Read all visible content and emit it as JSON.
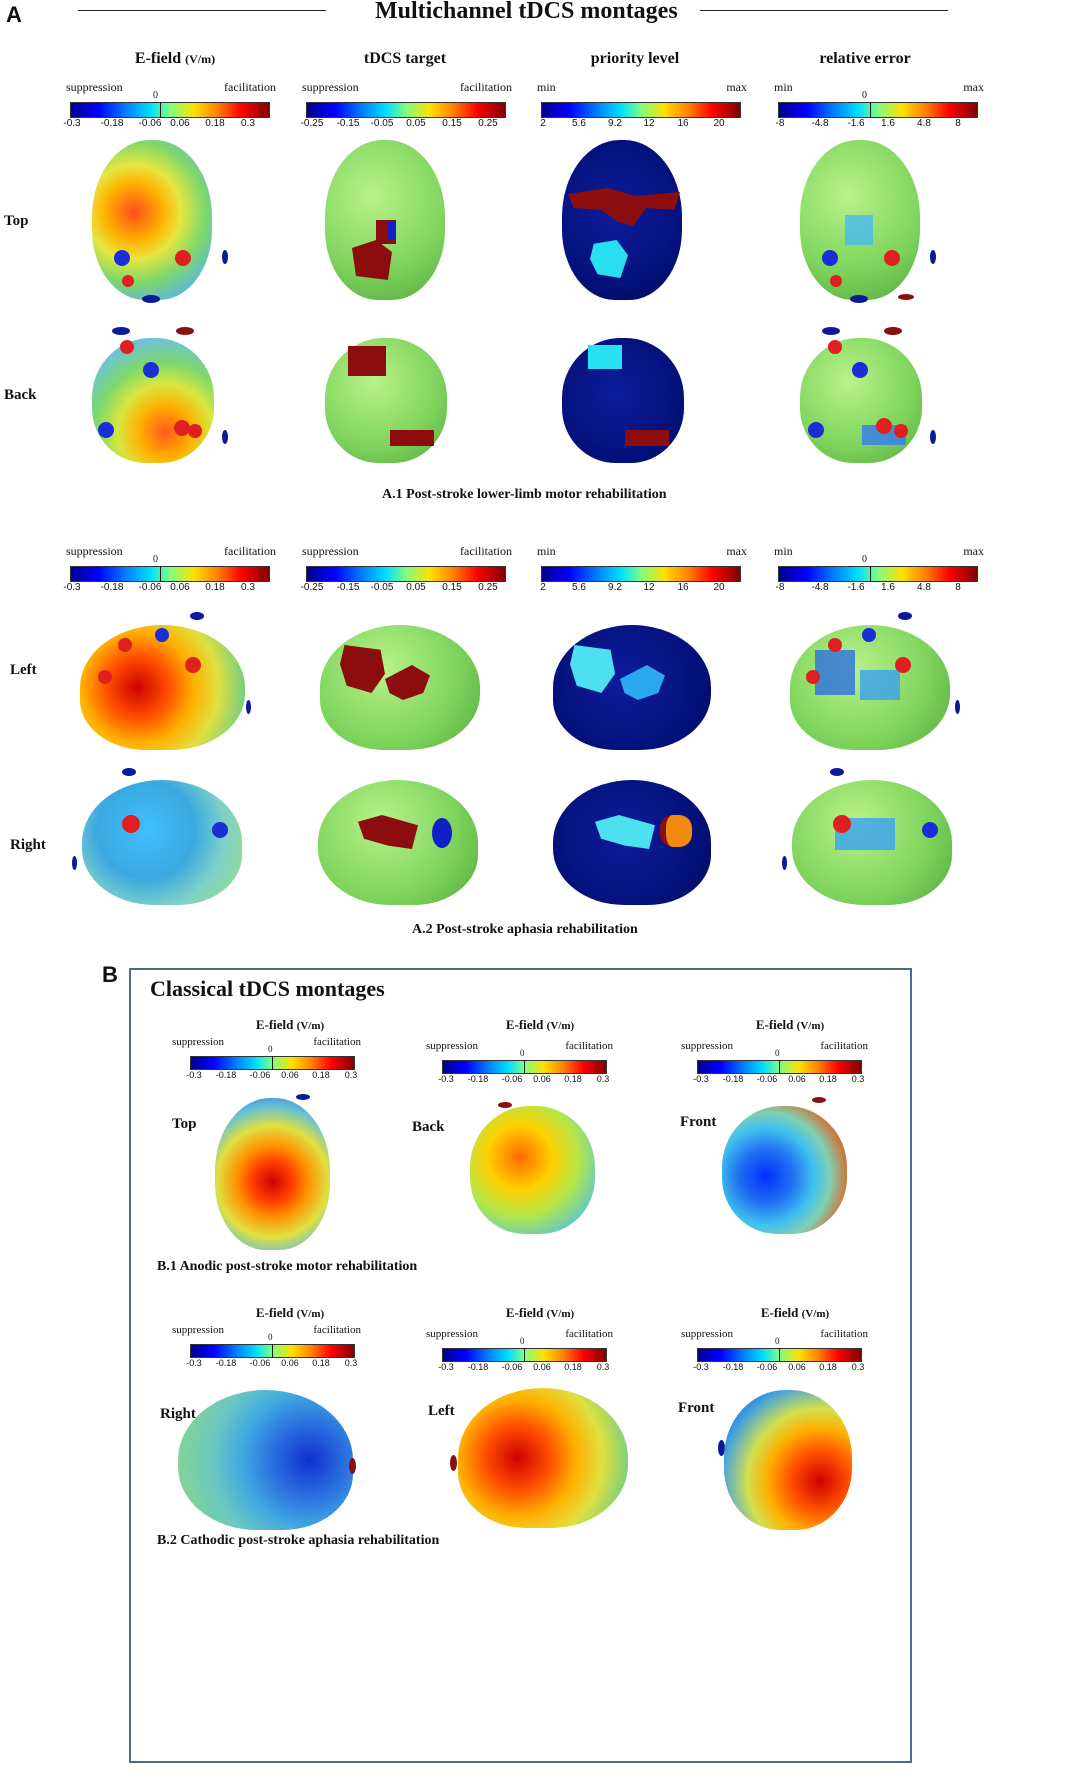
{
  "panel_a": {
    "letter": "A",
    "title": "Multichannel tDCS montages",
    "columns": [
      {
        "title": "E-field",
        "unit": "(V/m)",
        "left": "suppression",
        "right": "facilitation",
        "zero": "0",
        "ticks": [
          "-0.3",
          "-0.18",
          "-0.06",
          "0.06",
          "0.18",
          "0.3"
        ]
      },
      {
        "title": "tDCS target",
        "unit": "",
        "left": "suppression",
        "right": "facilitation",
        "zero": "",
        "ticks": [
          "-0.25",
          "-0.15",
          "-0.05",
          "0.05",
          "0.15",
          "0.25"
        ]
      },
      {
        "title": "priority level",
        "unit": "",
        "left": "min",
        "right": "max",
        "zero": "",
        "ticks": [
          "2",
          "5.6",
          "9.2",
          "12",
          "16",
          "20"
        ]
      },
      {
        "title": "relative error",
        "unit": "",
        "left": "min",
        "right": "max",
        "zero": "0",
        "ticks": [
          "-8",
          "-4.8",
          "-1.6",
          "1.6",
          "4.8",
          "8"
        ]
      }
    ],
    "a1": {
      "rows": [
        "Top",
        "Back"
      ],
      "caption": "A.1 Post-stroke lower-limb  motor rehabilitation"
    },
    "a2": {
      "rows": [
        "Left",
        "Right"
      ],
      "caption": "A.2 Post-stroke aphasia rehabilitation"
    }
  },
  "panel_b": {
    "letter": "B",
    "title": "Classical tDCS montages",
    "colorbar": {
      "title": "E-field",
      "unit": "(V/m)",
      "left": "suppression",
      "right": "facilitation",
      "zero": "0",
      "ticks": [
        "-0.3",
        "-0.18",
        "-0.06",
        "0.06",
        "0.18",
        "0.3"
      ]
    },
    "b1": {
      "views": [
        "Top",
        "Back",
        "Front"
      ],
      "caption": "B.1 Anodic post-stroke motor rehabilitation"
    },
    "b2": {
      "views": [
        "Right",
        "Left",
        "Front"
      ],
      "caption": "B.2 Cathodic post-stroke aphasia rehabilitation"
    }
  }
}
